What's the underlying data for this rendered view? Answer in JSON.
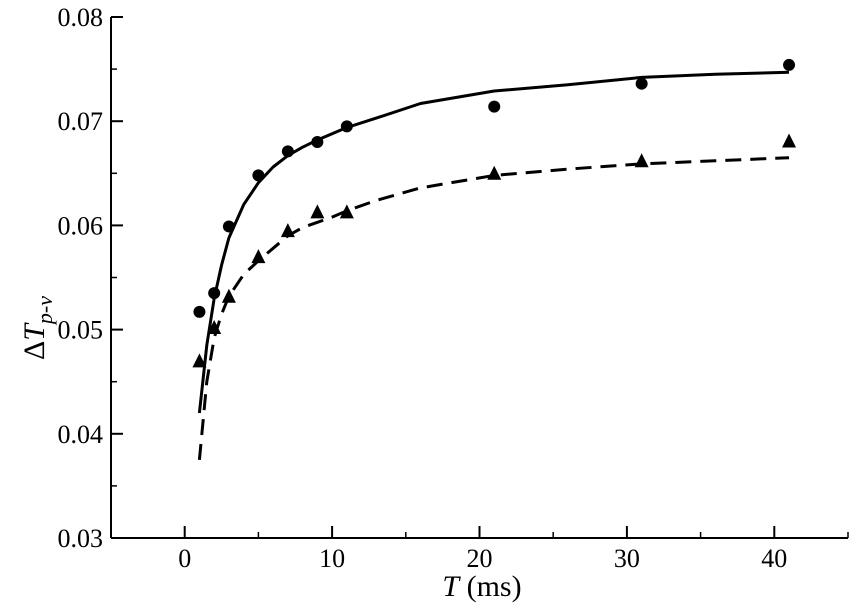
{
  "chart_data": {
    "type": "line",
    "xlabel": {
      "var": "T",
      "unit": " (ms)"
    },
    "ylabel": {
      "prefix": "Δ",
      "var": "T",
      "sub": "p-v"
    },
    "xlim": [
      -5,
      45
    ],
    "ylim": [
      0.03,
      0.08
    ],
    "xticks": [
      0,
      10,
      20,
      30,
      40
    ],
    "yticks": [
      0.03,
      0.04,
      0.05,
      0.06,
      0.07,
      0.08
    ],
    "x_tick_labels": [
      "0",
      "10",
      "20",
      "30",
      "40"
    ],
    "y_tick_labels": [
      "0.03",
      "0.04",
      "0.05",
      "0.06",
      "0.07",
      "0.08"
    ],
    "grid": false,
    "series": [
      {
        "style": "solid",
        "marker": "circle",
        "color": "#000000",
        "points": {
          "x": [
            1,
            2,
            3,
            5,
            7,
            9,
            11,
            21,
            31,
            41
          ],
          "y": [
            0.0517,
            0.0535,
            0.0599,
            0.0648,
            0.0671,
            0.068,
            0.0695,
            0.0714,
            0.0736,
            0.0754
          ]
        },
        "fit": {
          "x": [
            1,
            1.5,
            2,
            2.5,
            3,
            4,
            5,
            6,
            7,
            8,
            9,
            10,
            11,
            13,
            16,
            21,
            26,
            31,
            36,
            41
          ],
          "y": [
            0.042,
            0.0485,
            0.053,
            0.0562,
            0.0588,
            0.062,
            0.0641,
            0.0656,
            0.0667,
            0.0675,
            0.0682,
            0.0688,
            0.0694,
            0.0703,
            0.0717,
            0.0729,
            0.0735,
            0.0742,
            0.0745,
            0.0747
          ]
        }
      },
      {
        "style": "dashed",
        "marker": "triangle",
        "color": "#000000",
        "points": {
          "x": [
            1,
            2,
            3,
            5,
            7,
            9,
            11,
            21,
            31,
            41
          ],
          "y": [
            0.047,
            0.0502,
            0.0532,
            0.057,
            0.0595,
            0.0613,
            0.0613,
            0.065,
            0.0662,
            0.0681
          ]
        },
        "fit": {
          "x": [
            1,
            1.5,
            2,
            2.5,
            3,
            4,
            5,
            6,
            7,
            8,
            9,
            10,
            11,
            13,
            16,
            21,
            26,
            31,
            36,
            41
          ],
          "y": [
            0.0375,
            0.045,
            0.0492,
            0.0515,
            0.0532,
            0.0553,
            0.0566,
            0.0578,
            0.059,
            0.0598,
            0.0603,
            0.0608,
            0.0614,
            0.0624,
            0.0636,
            0.0648,
            0.0654,
            0.0659,
            0.0662,
            0.0665
          ]
        }
      }
    ]
  }
}
